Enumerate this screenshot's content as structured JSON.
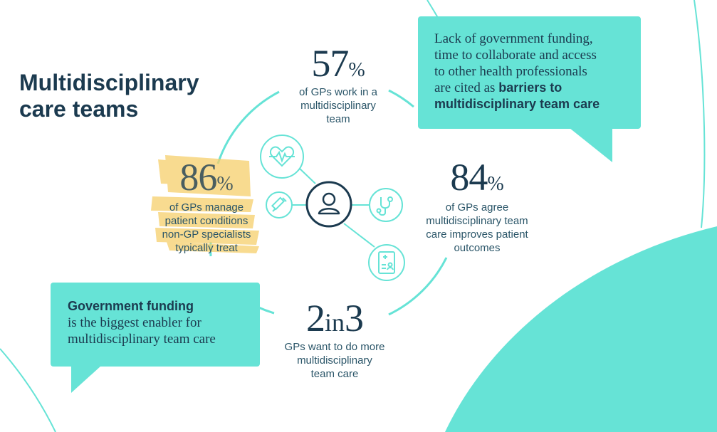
{
  "title": {
    "line1": "Multidisciplinary",
    "line2": "care teams"
  },
  "colors": {
    "navy": "#1b3a4f",
    "teal": "#66e3d6",
    "highlight": "#f6cf6b"
  },
  "stats": {
    "s57": {
      "number": "57",
      "suffix": "%",
      "desc": [
        "of GPs work in a",
        "multidisciplinary",
        "team"
      ]
    },
    "s86": {
      "number": "86",
      "suffix": "%",
      "desc": [
        "of GPs manage",
        "patient conditions",
        "non-GP specialists",
        "typically treat"
      ]
    },
    "s84": {
      "number": "84",
      "suffix": "%",
      "desc": [
        "of GPs agree",
        "multidisciplinary team",
        "care improves patient",
        "outcomes"
      ]
    },
    "s2in3": {
      "first": "2",
      "mid": "in",
      "last": "3",
      "desc": [
        "GPs want to do more",
        "multidisciplinary",
        "team care"
      ]
    }
  },
  "callout_barriers": {
    "lines": [
      "Lack of government funding,",
      "time to collaborate and access",
      "to other health professionals",
      "are cited as "
    ],
    "bold1": "barriers to",
    "bold2": "multidisciplinary team care"
  },
  "callout_enabler": {
    "bold": "Government funding",
    "lines": [
      "is the biggest enabler for",
      "multidisciplinary team care"
    ]
  },
  "icons": [
    "person-icon",
    "heart-monitor-icon",
    "syringe-icon",
    "stethoscope-icon",
    "medical-record-icon"
  ]
}
